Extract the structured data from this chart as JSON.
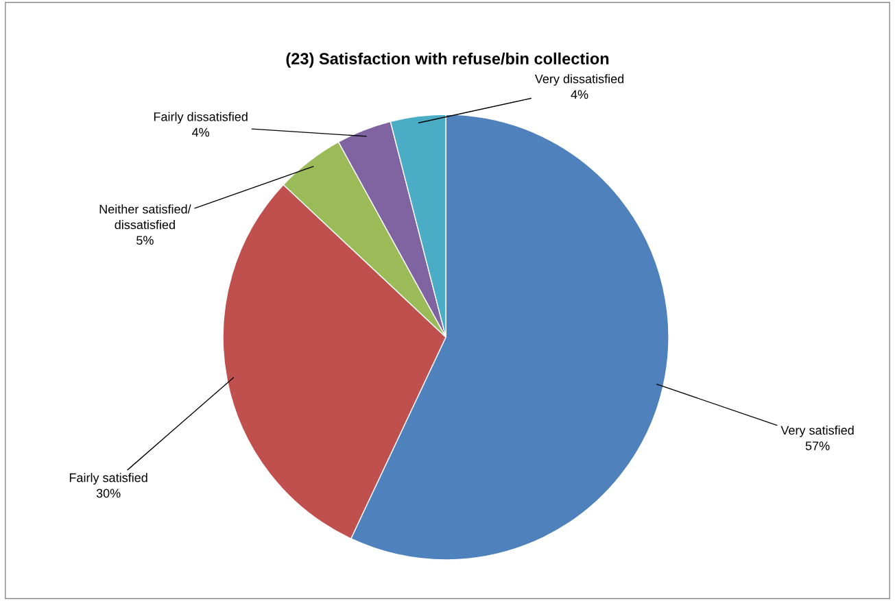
{
  "chart_data": {
    "type": "pie",
    "title": "(23) Satisfaction with refuse/bin collection",
    "categories": [
      "Very satisfied",
      "Fairly satisfied",
      "Neither satisfied/\ndissatisfied",
      "Fairly dissatisfied",
      "Very dissatisfied"
    ],
    "values": [
      57,
      30,
      5,
      4,
      4
    ],
    "colors": [
      "#4f81bd",
      "#c0504d",
      "#9bbb59",
      "#8064a2",
      "#4bacc6"
    ],
    "value_labels": [
      "57%",
      "30%",
      "5%",
      "4%",
      "4%"
    ]
  }
}
